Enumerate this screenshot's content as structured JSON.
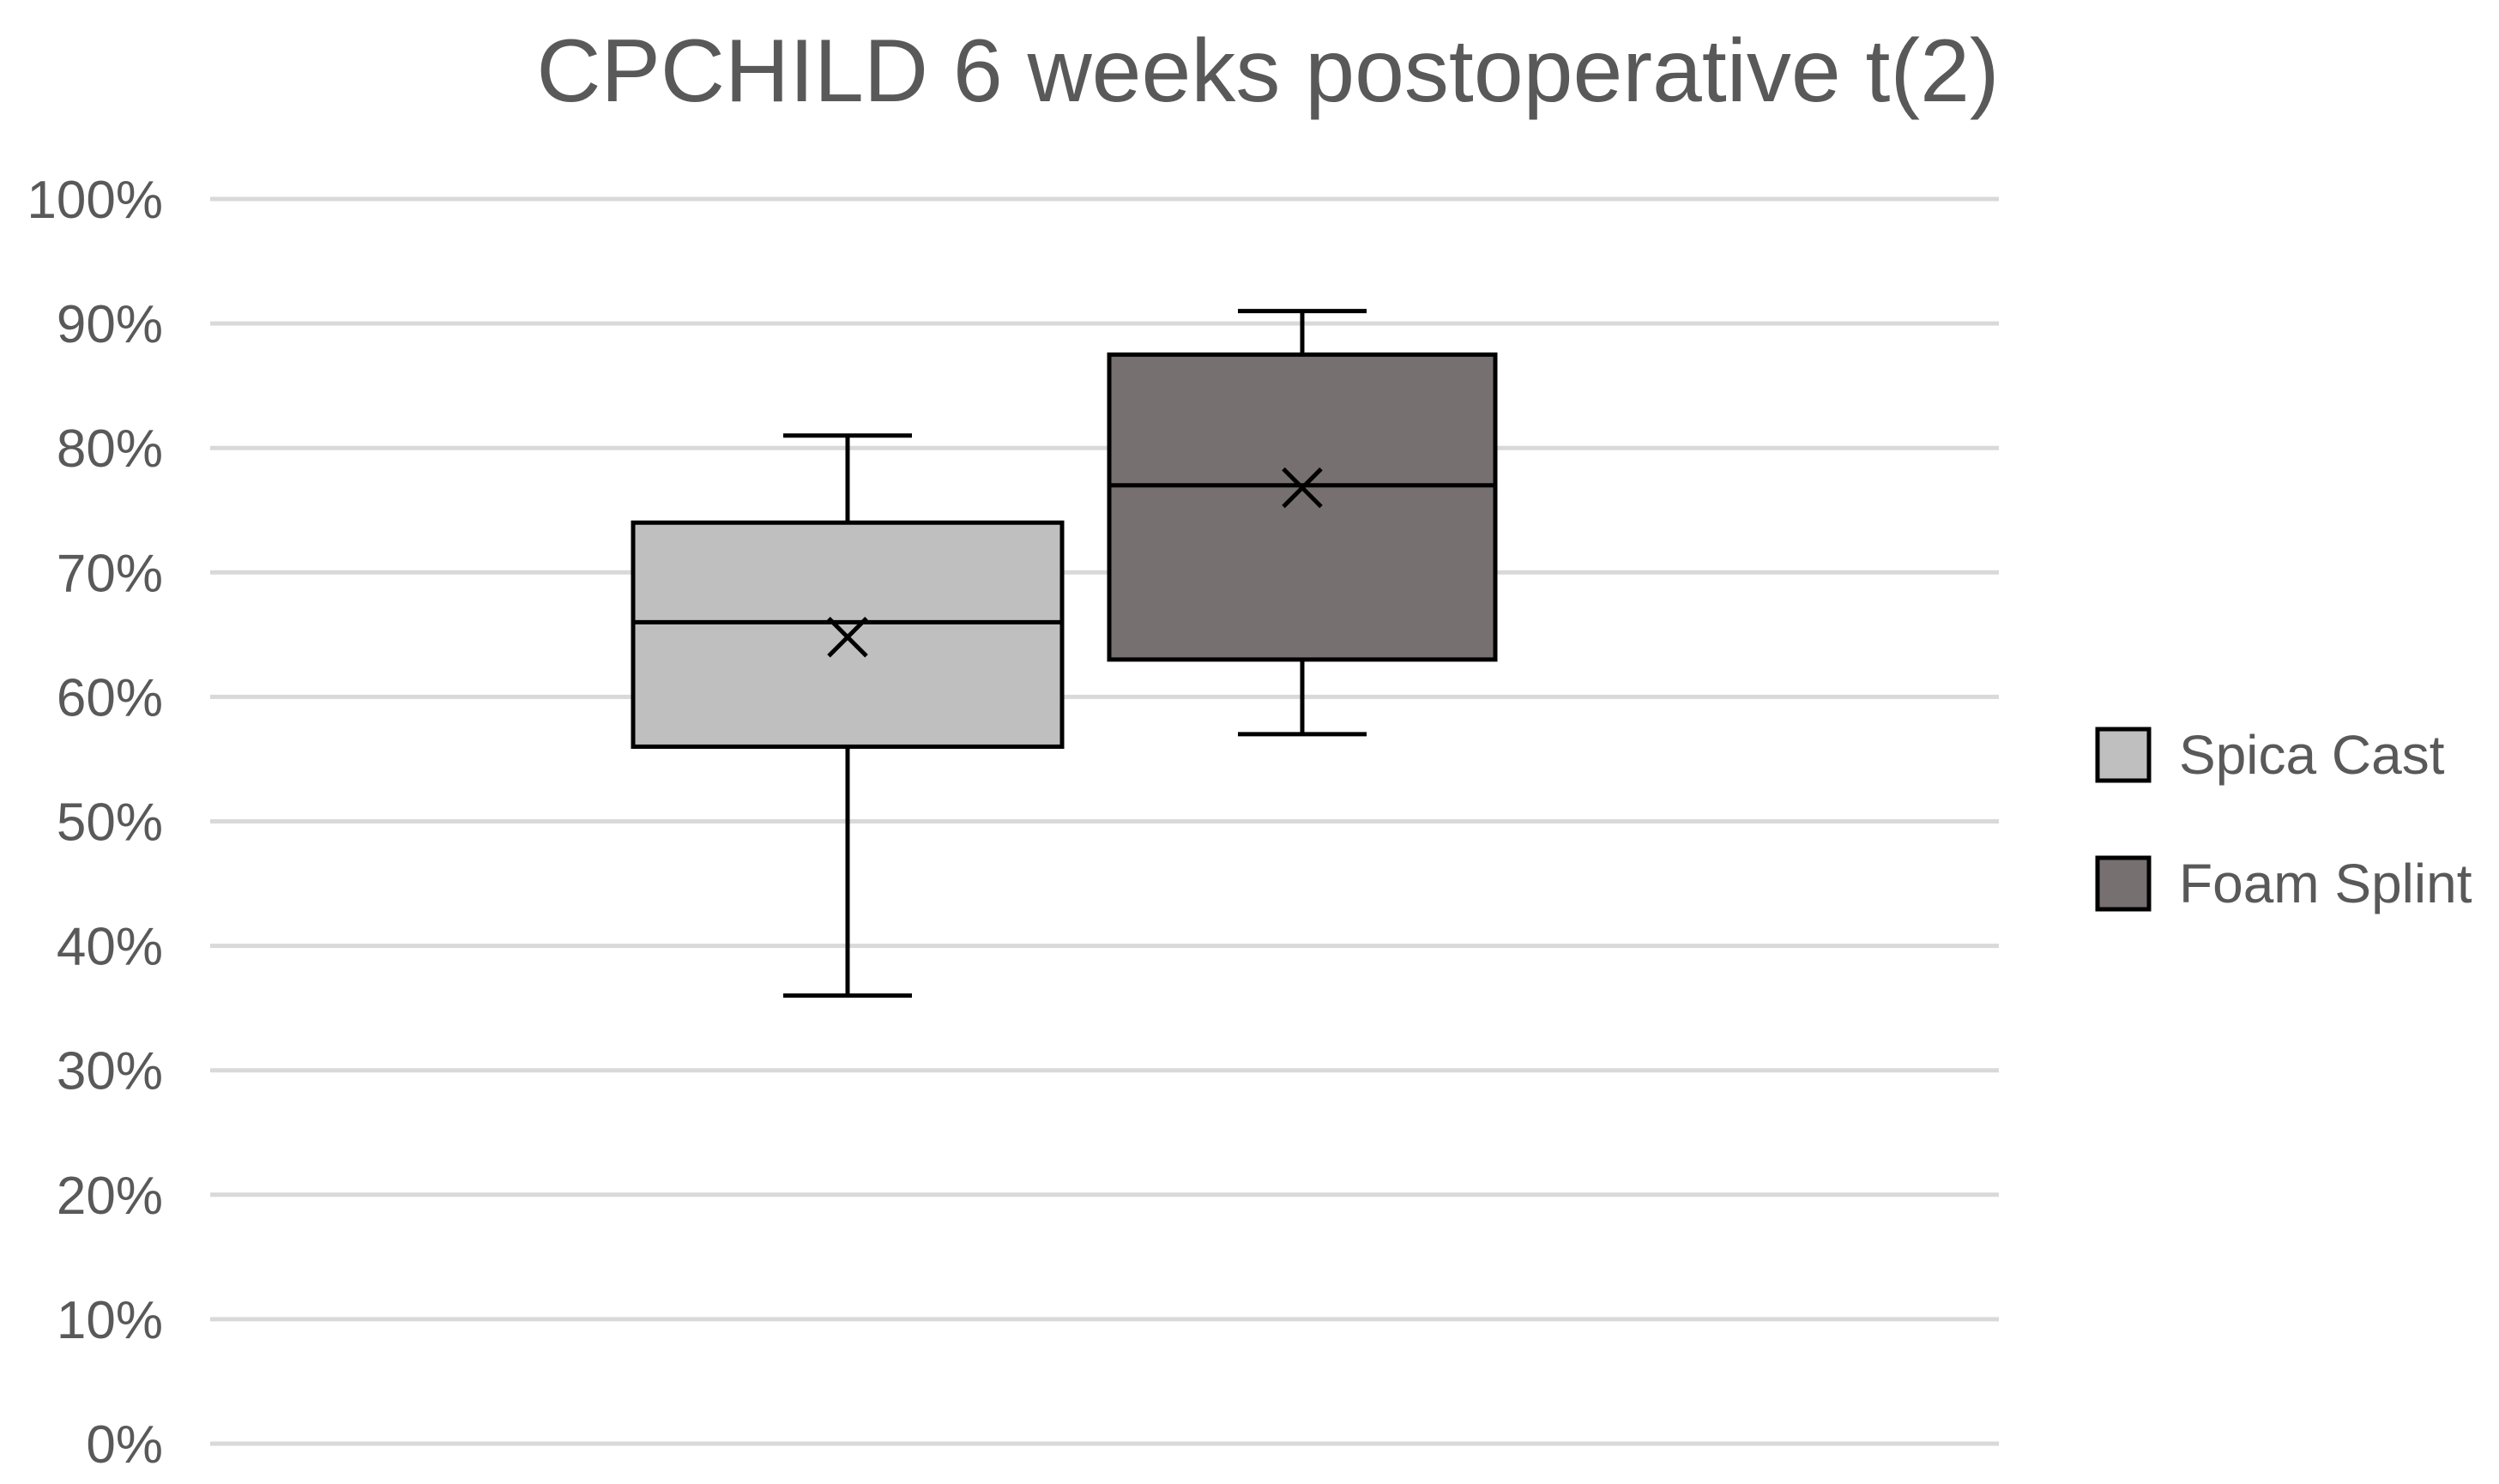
{
  "chart_data": {
    "type": "box",
    "title": "CPCHILD 6 weeks postoperative t(2)",
    "xlabel": "",
    "ylabel": "",
    "ylim": [
      0,
      100
    ],
    "y_ticks": [
      {
        "value": 0,
        "label": "0%"
      },
      {
        "value": 10,
        "label": "10%"
      },
      {
        "value": 20,
        "label": "20%"
      },
      {
        "value": 30,
        "label": "30%"
      },
      {
        "value": 40,
        "label": "40%"
      },
      {
        "value": 50,
        "label": "50%"
      },
      {
        "value": 60,
        "label": "60%"
      },
      {
        "value": 70,
        "label": "70%"
      },
      {
        "value": 80,
        "label": "80%"
      },
      {
        "value": 90,
        "label": "90%"
      },
      {
        "value": 100,
        "label": "100%"
      }
    ],
    "grid": true,
    "legend_position": "right",
    "series": [
      {
        "name": "Spica Cast",
        "color": "#bfbfbf",
        "min": 36,
        "q1": 56,
        "median": 66,
        "q3": 74,
        "max": 81,
        "mean": 64.8
      },
      {
        "name": "Foam Splint",
        "color": "#767070",
        "min": 57,
        "q1": 63,
        "median": 77,
        "q3": 87.5,
        "max": 91,
        "mean": 76.8
      }
    ]
  }
}
